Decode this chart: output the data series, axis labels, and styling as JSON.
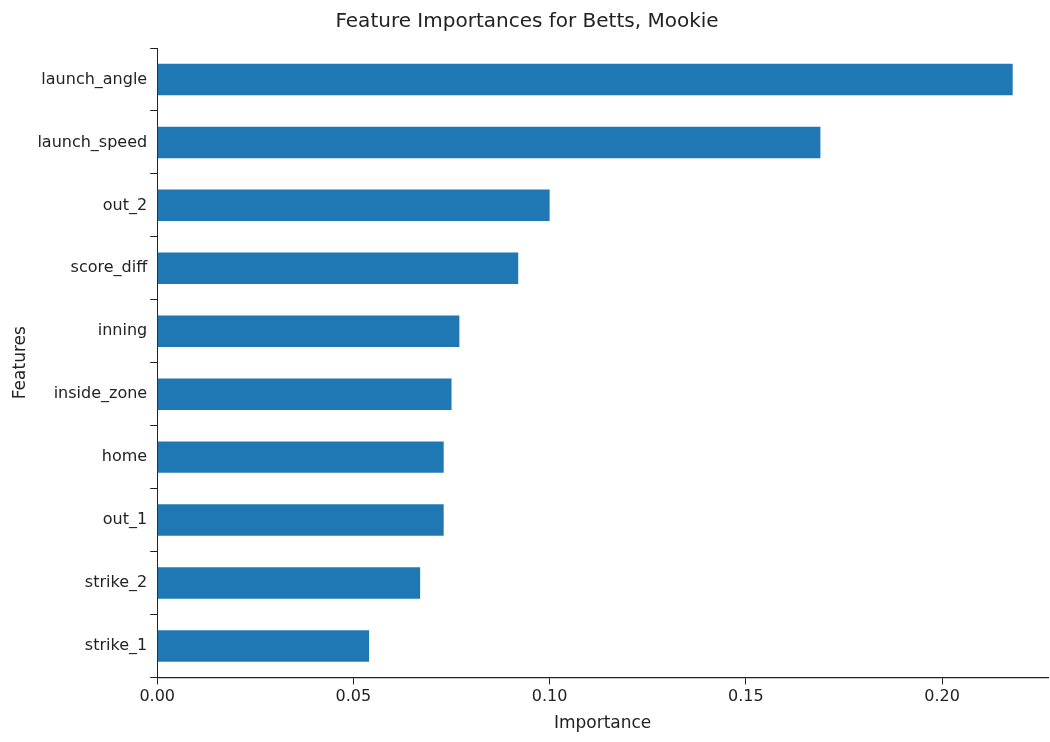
{
  "chart_data": {
    "type": "bar",
    "orientation": "horizontal",
    "title": "Feature Importances for Betts, Mookie",
    "xlabel": "Importance",
    "ylabel": "Features",
    "categories": [
      "launch_angle",
      "launch_speed",
      "out_2",
      "score_diff",
      "inning",
      "inside_zone",
      "home",
      "out_1",
      "strike_2",
      "strike_1"
    ],
    "values": [
      0.218,
      0.169,
      0.1,
      0.092,
      0.077,
      0.075,
      0.073,
      0.073,
      0.067,
      0.054
    ],
    "color": "#1f77b4",
    "xlim": [
      0,
      0.227
    ],
    "xticks": [
      {
        "value": 0,
        "label": "0.00"
      },
      {
        "value": 0.05,
        "label": "0.05"
      },
      {
        "value": 0.1,
        "label": "0.10"
      },
      {
        "value": 0.15,
        "label": "0.15"
      },
      {
        "value": 0.2,
        "label": "0.20"
      }
    ],
    "grid": false,
    "legend": false
  }
}
